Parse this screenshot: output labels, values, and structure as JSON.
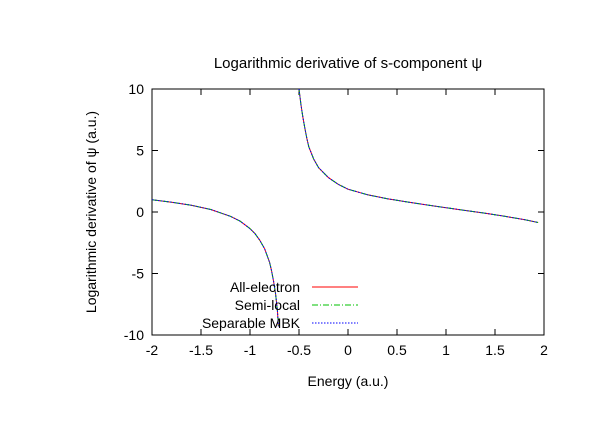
{
  "chart_data": {
    "type": "line",
    "title": "Logarithmic derivative of s-component ψ",
    "xlabel": "Energy (a.u.)",
    "ylabel": "Logarithmic derivative of ψ (a.u.)",
    "xlim": [
      -2,
      2
    ],
    "ylim": [
      -10,
      10
    ],
    "x_ticks": [
      -2,
      -1.5,
      -1,
      -0.5,
      0,
      0.5,
      1,
      1.5,
      2
    ],
    "y_ticks": [
      -10,
      -5,
      0,
      5,
      10
    ],
    "grid": false,
    "legend": "bottom-left",
    "series": [
      {
        "name": "All-electron",
        "color": "#ff0000",
        "dash": "solid"
      },
      {
        "name": "Semi-local",
        "color": "#00c000",
        "dash": "dashdot"
      },
      {
        "name": "Separable MBK",
        "color": "#0000ff",
        "dash": "dotted"
      }
    ],
    "curve_branches": [
      {
        "x": [
          -2.0,
          -1.8,
          -1.6,
          -1.4,
          -1.2,
          -1.1,
          -1.0,
          -0.95,
          -0.9,
          -0.85,
          -0.8,
          -0.78,
          -0.76,
          -0.74,
          -0.72,
          -0.71
        ],
        "y": [
          1.0,
          0.8,
          0.55,
          0.2,
          -0.35,
          -0.75,
          -1.35,
          -1.75,
          -2.3,
          -3.0,
          -4.1,
          -4.8,
          -5.6,
          -6.6,
          -8.0,
          -9.3
        ]
      },
      {
        "x": [
          -0.5,
          -0.48,
          -0.46,
          -0.44,
          -0.42,
          -0.4,
          -0.35,
          -0.3,
          -0.2,
          -0.1,
          0.0,
          0.2,
          0.4,
          0.6,
          0.8,
          1.0,
          1.2,
          1.4,
          1.6,
          1.8,
          1.94
        ],
        "y": [
          10.0,
          8.7,
          7.7,
          6.8,
          6.0,
          5.3,
          4.3,
          3.6,
          2.8,
          2.25,
          1.85,
          1.4,
          1.08,
          0.82,
          0.58,
          0.35,
          0.12,
          -0.1,
          -0.35,
          -0.62,
          -0.85
        ]
      }
    ]
  }
}
